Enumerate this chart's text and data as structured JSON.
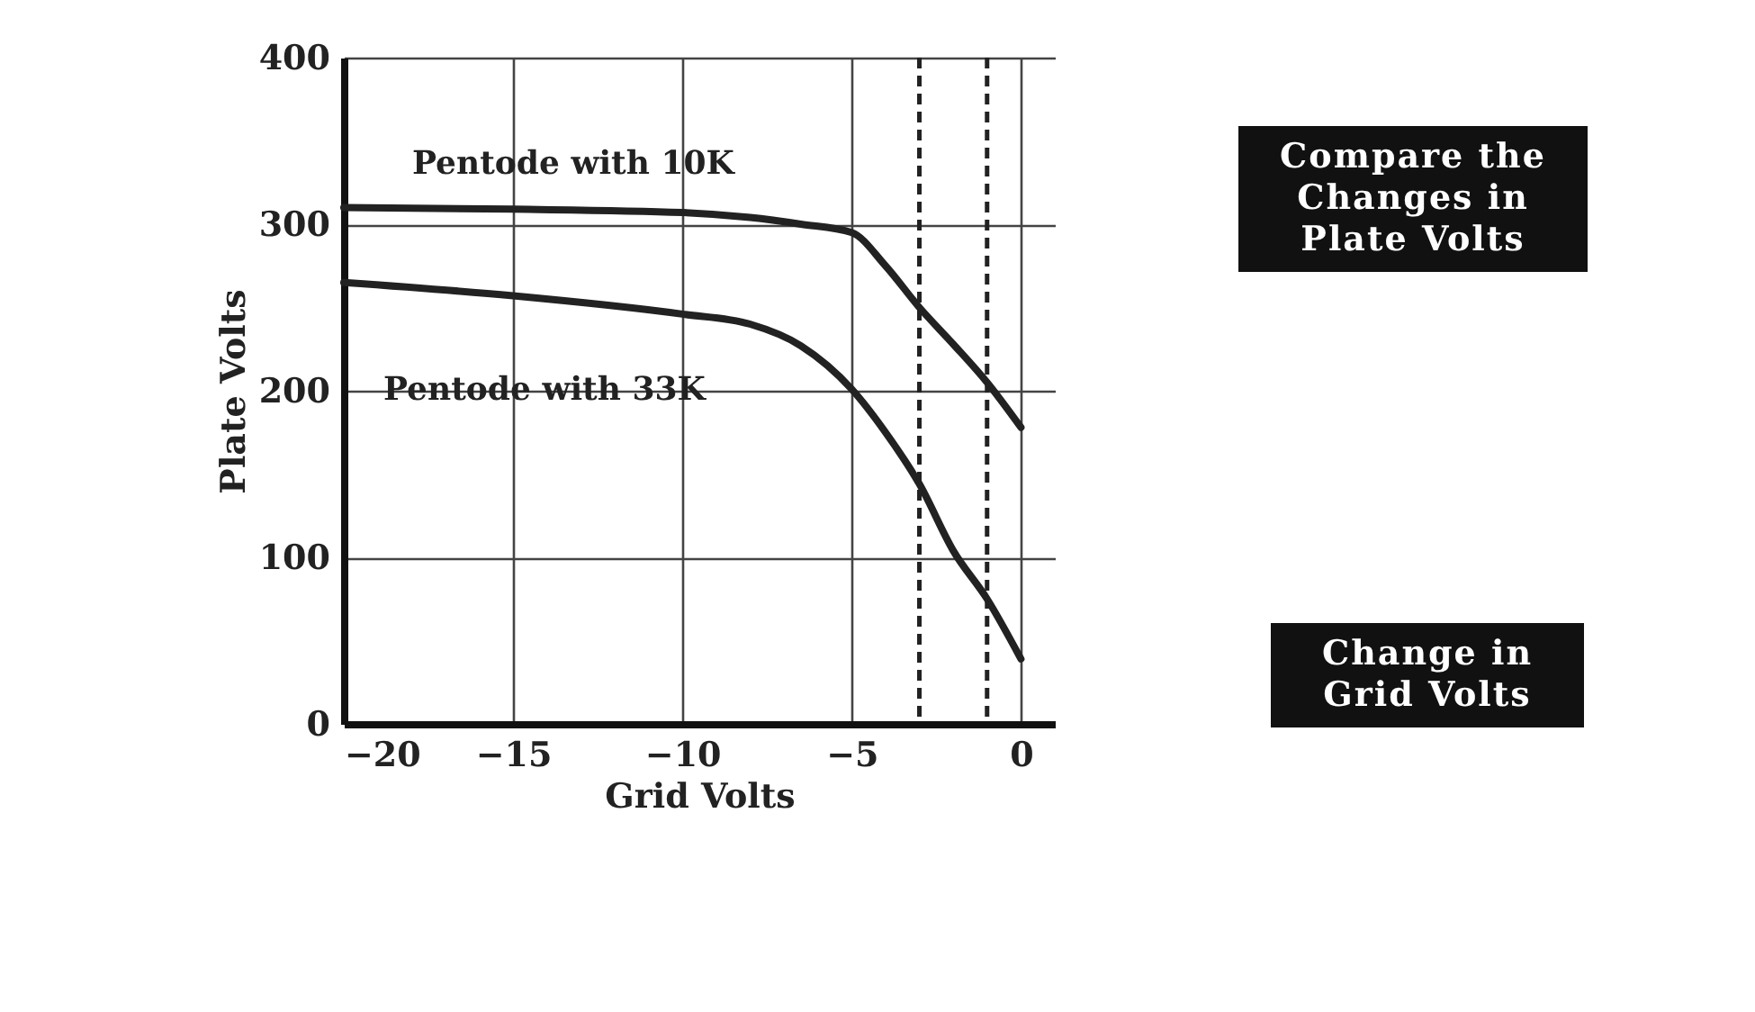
{
  "chart_data": {
    "type": "line",
    "xlabel": "Grid Volts",
    "ylabel": "Plate Volts",
    "xlim": [
      -20,
      1
    ],
    "ylim": [
      0,
      400
    ],
    "xticks": [
      -20,
      -15,
      -10,
      -5,
      0
    ],
    "yticks": [
      0,
      100,
      200,
      300,
      400
    ],
    "grid": true,
    "legend": false,
    "line_style": "solid",
    "marker": "none",
    "series": [
      {
        "name": "Pentode with 10K",
        "color": "#222222",
        "x": [
          -20,
          -15,
          -10,
          -8,
          -6.5,
          -5,
          -4,
          -3,
          -2,
          -1,
          0
        ],
        "values": [
          310,
          309,
          307,
          304,
          300,
          295,
          275,
          250,
          228,
          205,
          178
        ]
      },
      {
        "name": "Pentode with 33K",
        "color": "#222222",
        "x": [
          -20,
          -15,
          -10,
          -8,
          -6.5,
          -5,
          -4,
          -3,
          -2,
          -1,
          0
        ],
        "values": [
          265,
          257,
          246,
          240,
          227,
          201,
          175,
          144,
          104,
          75,
          39
        ]
      }
    ],
    "ref_lines": [
      {
        "axis": "x",
        "value": -3,
        "line_style": "dashed",
        "color": "#222222"
      },
      {
        "axis": "x",
        "value": -1,
        "line_style": "dashed",
        "color": "#222222"
      }
    ],
    "annotations": [
      "Compare the Changes in Plate Volts",
      "Change in Grid Volts"
    ]
  }
}
